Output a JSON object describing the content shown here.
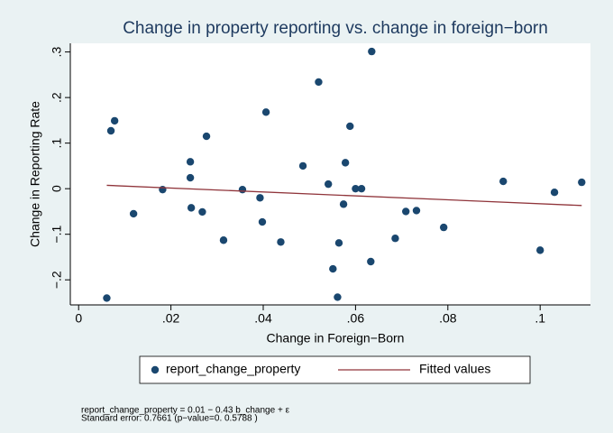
{
  "chart_data": {
    "type": "scatter",
    "title": "Change in property reporting vs. change in foreign−born",
    "xlabel": "Change in Foreign−Born",
    "ylabel": "Change in Reporting Rate",
    "xlim": [
      -0.0018,
      0.1109
    ],
    "ylim": [
      -0.255,
      0.319
    ],
    "xticks": [
      0,
      {
        "value": 0.02,
        "label": ".02"
      },
      {
        "value": 0.04,
        "label": ".04"
      },
      {
        "value": 0.06,
        "label": ".06"
      },
      {
        "value": 0.08,
        "label": ".08"
      },
      {
        "value": 0.1,
        "label": ".1"
      }
    ],
    "yticks": [
      {
        "value": -0.2,
        "label": "−.2"
      },
      {
        "value": -0.1,
        "label": "−.1"
      },
      0,
      {
        "value": 0.1,
        "label": ".1"
      },
      {
        "value": 0.2,
        "label": ".2"
      },
      {
        "value": 0.3,
        "label": ".3"
      }
    ],
    "legend": "bottom",
    "series": [
      {
        "name": "report_change_property",
        "color": "#1a476f",
        "x": [
          0.0061,
          0.007,
          0.0078,
          0.0119,
          0.0182,
          0.0242,
          0.0242,
          0.0244,
          0.0268,
          0.0277,
          0.0314,
          0.0355,
          0.0393,
          0.0398,
          0.0406,
          0.0438,
          0.0486,
          0.052,
          0.0541,
          0.0551,
          0.0561,
          0.0564,
          0.0574,
          0.0578,
          0.0588,
          0.06,
          0.0613,
          0.0633,
          0.0635,
          0.0686,
          0.0709,
          0.0732,
          0.0791,
          0.092,
          0.1,
          0.1031,
          0.109
        ],
        "values": [
          -0.24,
          0.127,
          0.149,
          -0.055,
          -0.002,
          0.059,
          0.024,
          -0.042,
          -0.051,
          0.115,
          -0.113,
          -0.002,
          -0.02,
          -0.073,
          0.168,
          -0.117,
          0.05,
          0.234,
          0.01,
          -0.176,
          -0.238,
          -0.119,
          -0.034,
          0.057,
          0.137,
          0.0,
          0.0,
          -0.16,
          0.301,
          -0.109,
          -0.05,
          -0.048,
          -0.085,
          0.016,
          -0.135,
          -0.008,
          0.014
        ]
      },
      {
        "name": "Fitted values",
        "type": "line",
        "color": "#90353b",
        "x": [
          0.0061,
          0.109
        ],
        "values": [
          0.0074,
          -0.0369
        ]
      }
    ],
    "notes": [
      "report_change_property =    0.01 −   0.43 b_change + ε",
      "Standard error:  0.7661  (p−value=0. 0.5788 )"
    ]
  }
}
